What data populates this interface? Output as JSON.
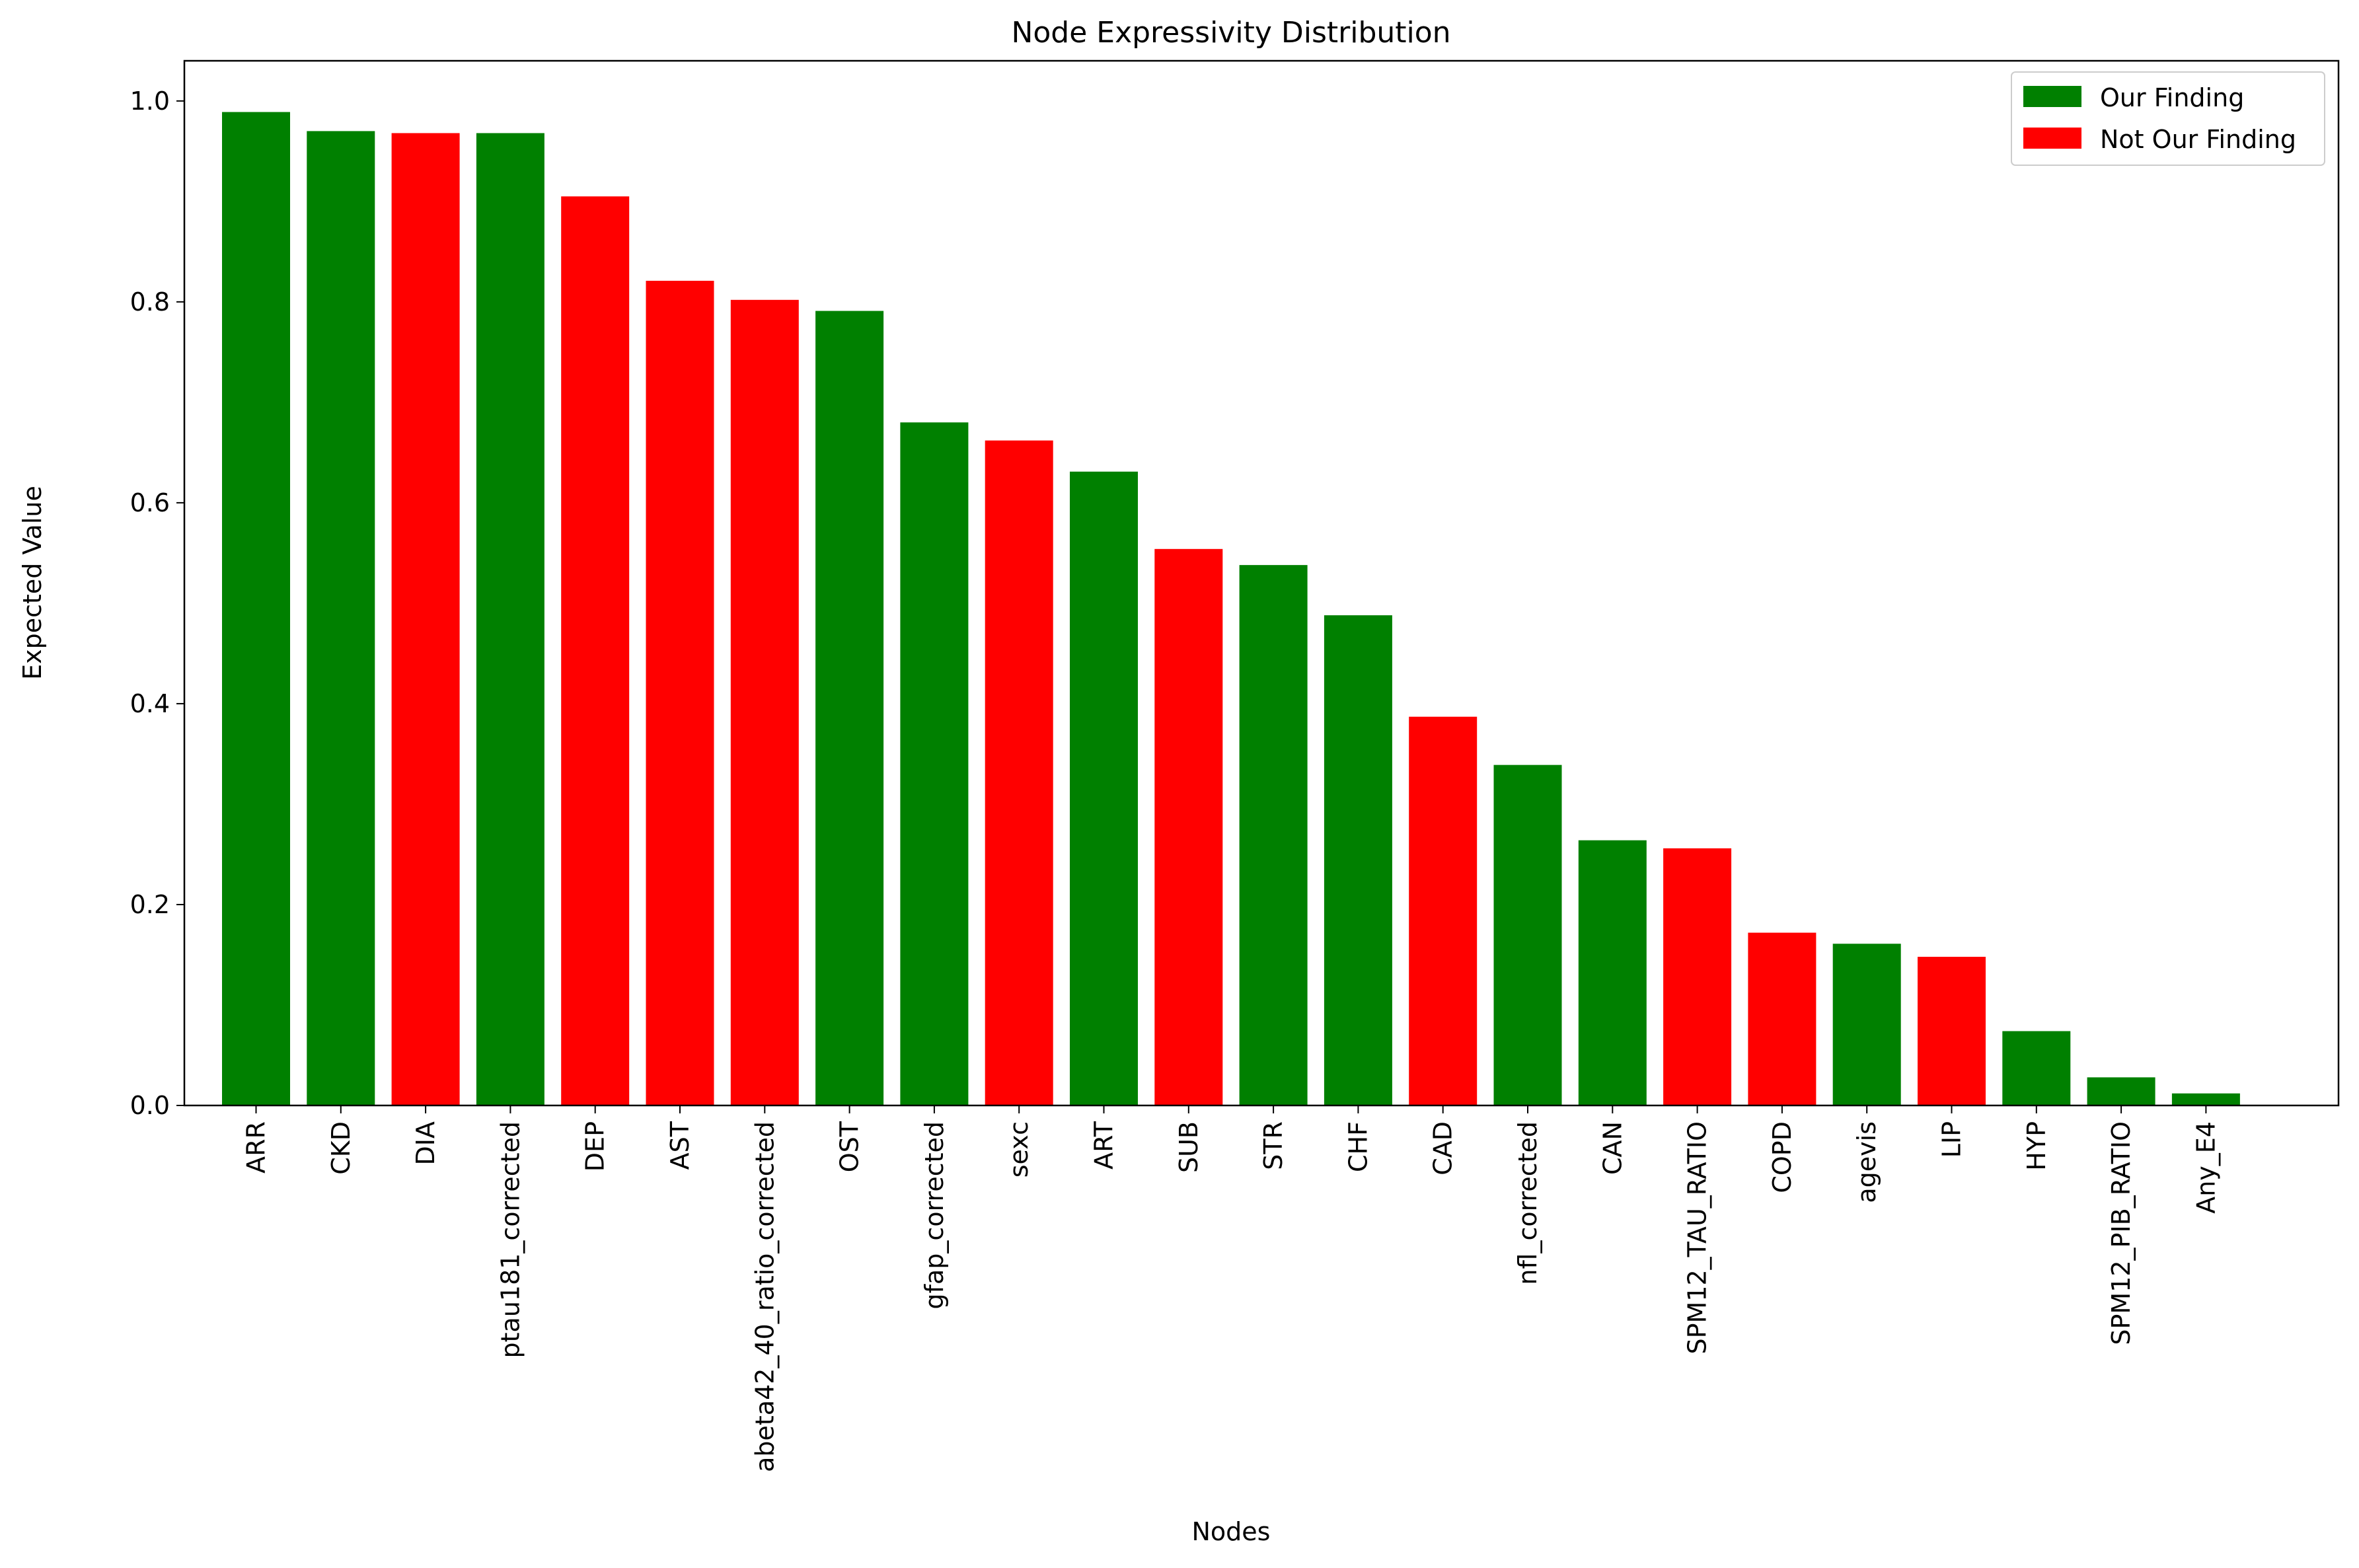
{
  "chart_data": {
    "type": "bar",
    "title": "Node Expressivity Distribution",
    "xlabel": "Nodes",
    "ylabel": "Expected Value",
    "ylim": [
      0,
      1.04
    ],
    "yticks": [
      "0.0",
      "0.2",
      "0.4",
      "0.6",
      "0.8",
      "1.0"
    ],
    "ytick_values": [
      0.0,
      0.2,
      0.4,
      0.6,
      0.8,
      1.0
    ],
    "grid": false,
    "legend_position": "top-right",
    "legend": [
      {
        "label": "Our Finding",
        "color": "#008000"
      },
      {
        "label": "Not Our Finding",
        "color": "#ff0000"
      }
    ],
    "categories": [
      "ARR",
      "CKD",
      "DIA",
      "ptau181_corrected",
      "DEP",
      "AST",
      "abeta42_40_ratio_corrected",
      "OST",
      "gfap_corrected",
      "sexc",
      "ART",
      "SUB",
      "STR",
      "CHF",
      "CAD",
      "nfl_corrected",
      "CAN",
      "SPM12_TAU_RATIO",
      "COPD",
      "agevis",
      "LIP",
      "HYP",
      "SPM12_PIB_RATIO",
      "Any_E4"
    ],
    "values": [
      0.989,
      0.97,
      0.968,
      0.968,
      0.905,
      0.821,
      0.802,
      0.791,
      0.68,
      0.662,
      0.631,
      0.554,
      0.538,
      0.488,
      0.387,
      0.339,
      0.264,
      0.256,
      0.172,
      0.161,
      0.148,
      0.074,
      0.028,
      0.012
    ],
    "groups": [
      "Our Finding",
      "Our Finding",
      "Not Our Finding",
      "Our Finding",
      "Not Our Finding",
      "Not Our Finding",
      "Not Our Finding",
      "Our Finding",
      "Our Finding",
      "Not Our Finding",
      "Our Finding",
      "Not Our Finding",
      "Our Finding",
      "Our Finding",
      "Not Our Finding",
      "Our Finding",
      "Our Finding",
      "Not Our Finding",
      "Not Our Finding",
      "Our Finding",
      "Not Our Finding",
      "Our Finding",
      "Our Finding",
      "Our Finding"
    ]
  }
}
